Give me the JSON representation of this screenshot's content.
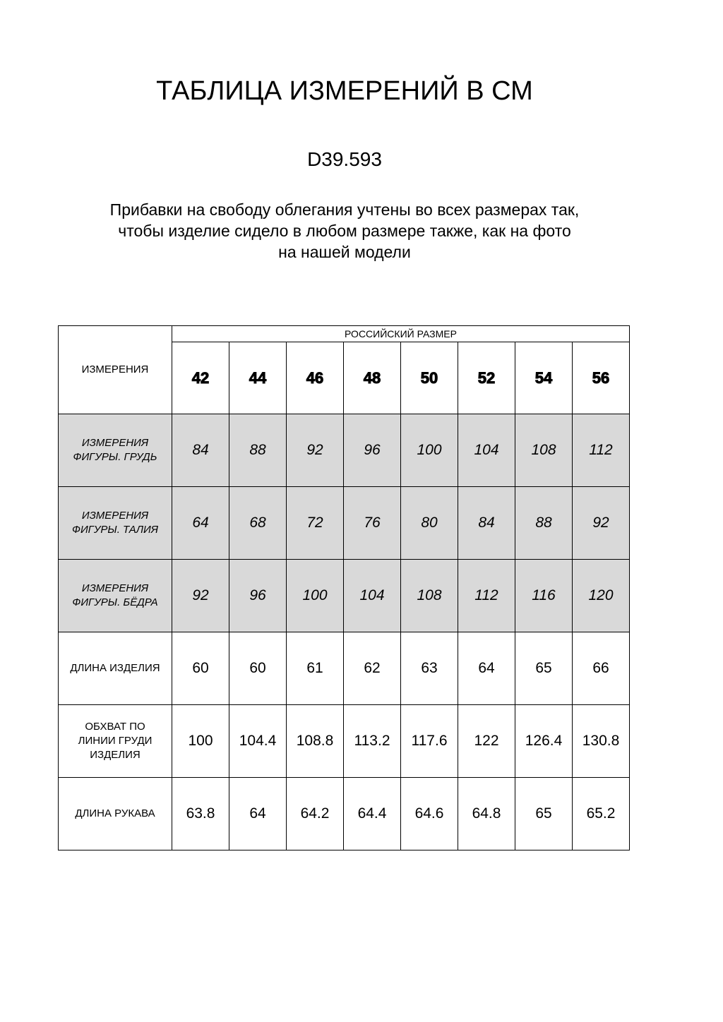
{
  "title": "ТАБЛИЦА ИЗМЕРЕНИЙ В СМ",
  "code": "D39.593",
  "note": [
    "Прибавки на свободу облегания учтены во всех размерах так,",
    "чтобы изделие сидело в любом размере также, как на фото",
    "на нашей модели"
  ],
  "table": {
    "corner": "ИЗМЕРЕНИЯ",
    "group_header": "РОССИЙСКИЙ РАЗМЕР",
    "sizes": [
      "42",
      "44",
      "46",
      "48",
      "50",
      "52",
      "54",
      "56"
    ],
    "rows": [
      {
        "label": [
          "ИЗМЕРЕНИЯ",
          "ФИГУРЫ. ГРУДЬ"
        ],
        "shaded": true,
        "values": [
          "84",
          "88",
          "92",
          "96",
          "100",
          "104",
          "108",
          "112"
        ]
      },
      {
        "label": [
          "ИЗМЕРЕНИЯ",
          "ФИГУРЫ. ТАЛИЯ"
        ],
        "shaded": true,
        "values": [
          "64",
          "68",
          "72",
          "76",
          "80",
          "84",
          "88",
          "92"
        ]
      },
      {
        "label": [
          "ИЗМЕРЕНИЯ",
          "ФИГУРЫ. БЁДРА"
        ],
        "shaded": true,
        "values": [
          "92",
          "96",
          "100",
          "104",
          "108",
          "112",
          "116",
          "120"
        ]
      },
      {
        "label": [
          "ДЛИНА ИЗДЕЛИЯ"
        ],
        "shaded": false,
        "values": [
          "60",
          "60",
          "61",
          "62",
          "63",
          "64",
          "65",
          "66"
        ]
      },
      {
        "label": [
          "ОБХВАТ ПО",
          "ЛИНИИ ГРУДИ",
          "ИЗДЕЛИЯ"
        ],
        "shaded": false,
        "values": [
          "100",
          "104.4",
          "108.8",
          "113.2",
          "117.6",
          "122",
          "126.4",
          "130.8"
        ]
      },
      {
        "label": [
          "ДЛИНА РУКАВА"
        ],
        "shaded": false,
        "values": [
          "63.8",
          "64",
          "64.2",
          "64.4",
          "64.6",
          "64.8",
          "65",
          "65.2"
        ]
      }
    ],
    "shade_color": "#d9d9d9"
  }
}
